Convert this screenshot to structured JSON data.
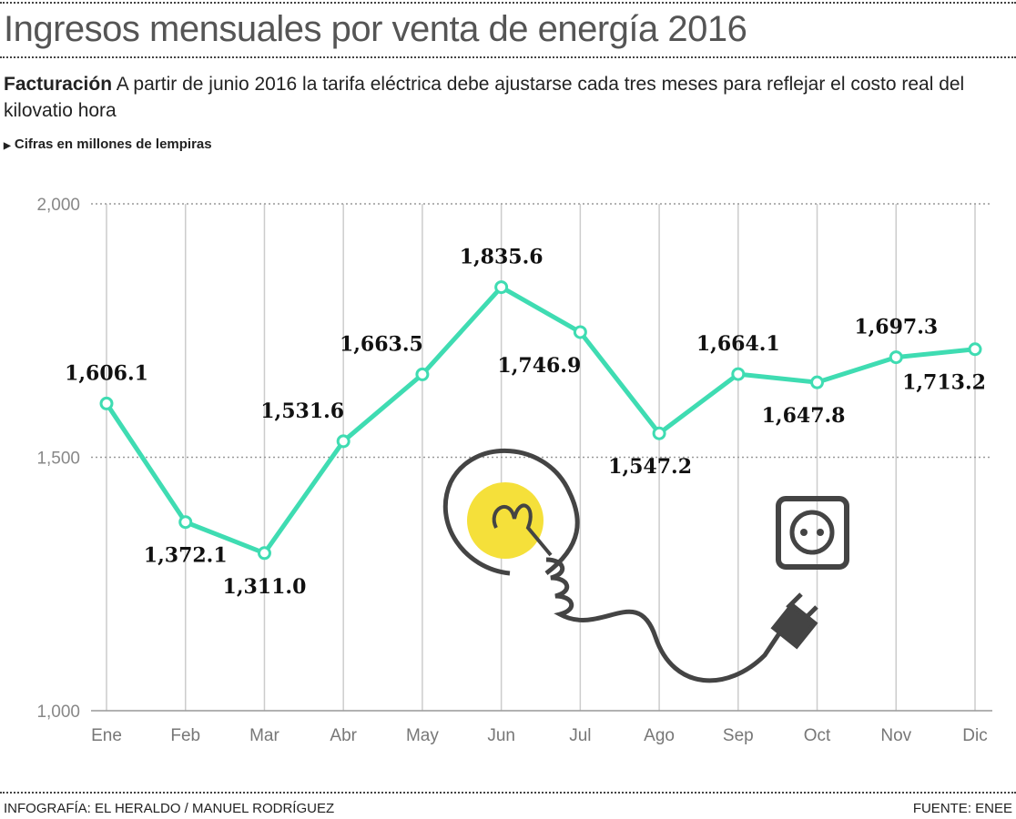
{
  "header": {
    "title": "Ingresos mensuales por venta de energía 2016",
    "subtitle_bold": "Facturación",
    "subtitle": "A partir de junio 2016 la tarifa eléctrica debe ajustarse cada tres meses para reflejar el costo real del kilovatio hora",
    "note": "Cifras en millones de lempiras"
  },
  "footer": {
    "credit": "INFOGRAFÍA: EL HERALDO / MANUEL RODRÍGUEZ",
    "source": "FUENTE: ENEE"
  },
  "colors": {
    "line": "#3fdcb2",
    "grid": "#cccccc",
    "bulb": "#f5e03a",
    "illustration": "#444444"
  },
  "chart_data": {
    "type": "line",
    "categories": [
      "Ene",
      "Feb",
      "Mar",
      "Abr",
      "May",
      "Jun",
      "Jul",
      "Ago",
      "Sep",
      "Oct",
      "Nov",
      "Dic"
    ],
    "values": [
      1606.1,
      1372.1,
      1311.0,
      1531.6,
      1663.5,
      1835.6,
      1746.9,
      1547.2,
      1664.1,
      1647.8,
      1697.3,
      1713.2
    ],
    "data_labels": [
      "1,606.1",
      "1,372.1",
      "1,311.0",
      "1,531.6",
      "1,663.5",
      "1,835.6",
      "1,746.9",
      "1,547.2",
      "1,664.1",
      "1,647.8",
      "1,697.3",
      "1,713.2"
    ],
    "yticks": [
      1000,
      1500,
      2000
    ],
    "ytick_labels": [
      "1,000",
      "1,500",
      "2,000"
    ],
    "ylim": [
      1000,
      2000
    ],
    "grid": true,
    "xlabel": "",
    "ylabel": ""
  }
}
